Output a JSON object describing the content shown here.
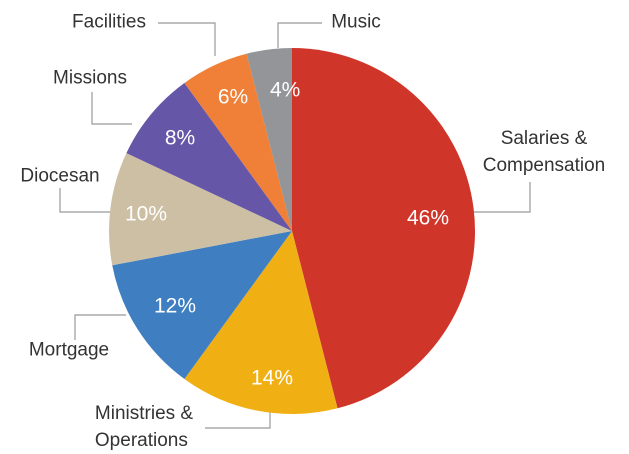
{
  "chart_data": {
    "type": "pie",
    "categories": [
      "Salaries &\nCompensation",
      "Ministries &\nOperations",
      "Mortgage",
      "Diocesan",
      "Missions",
      "Facilities",
      "Music"
    ],
    "values": [
      46,
      14,
      12,
      10,
      8,
      6,
      4
    ],
    "value_labels": [
      "46%",
      "14%",
      "12%",
      "10%",
      "8%",
      "6%",
      "4%"
    ],
    "colors": [
      "#d0352a",
      "#f0b014",
      "#3f7fc1",
      "#cdbfa3",
      "#6656a8",
      "#f07f38",
      "#939598"
    ]
  }
}
